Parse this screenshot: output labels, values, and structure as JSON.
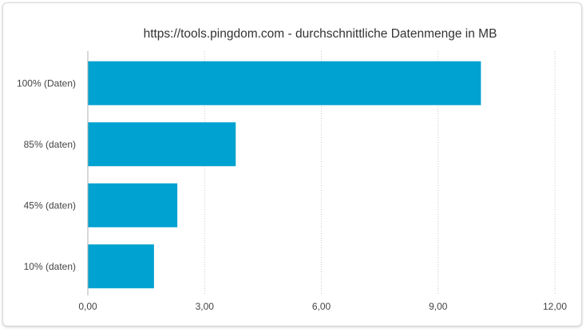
{
  "chart_data": {
    "type": "bar",
    "orientation": "horizontal",
    "title": "https://tools.pingdom.com - durchschnittliche Datenmenge in MB",
    "xlabel": "",
    "ylabel": "",
    "categories": [
      "100% (Daten)",
      "85% (daten)",
      "45% (daten)",
      "10% (daten)"
    ],
    "values": [
      10.1,
      3.8,
      2.3,
      1.7
    ],
    "xlim": [
      0,
      12
    ],
    "xticks": [
      "0,00",
      "3,00",
      "6,00",
      "9,00",
      "12,00"
    ],
    "grid": "vertical dotted",
    "legend": "none",
    "bar_color": "#00a2d1"
  }
}
